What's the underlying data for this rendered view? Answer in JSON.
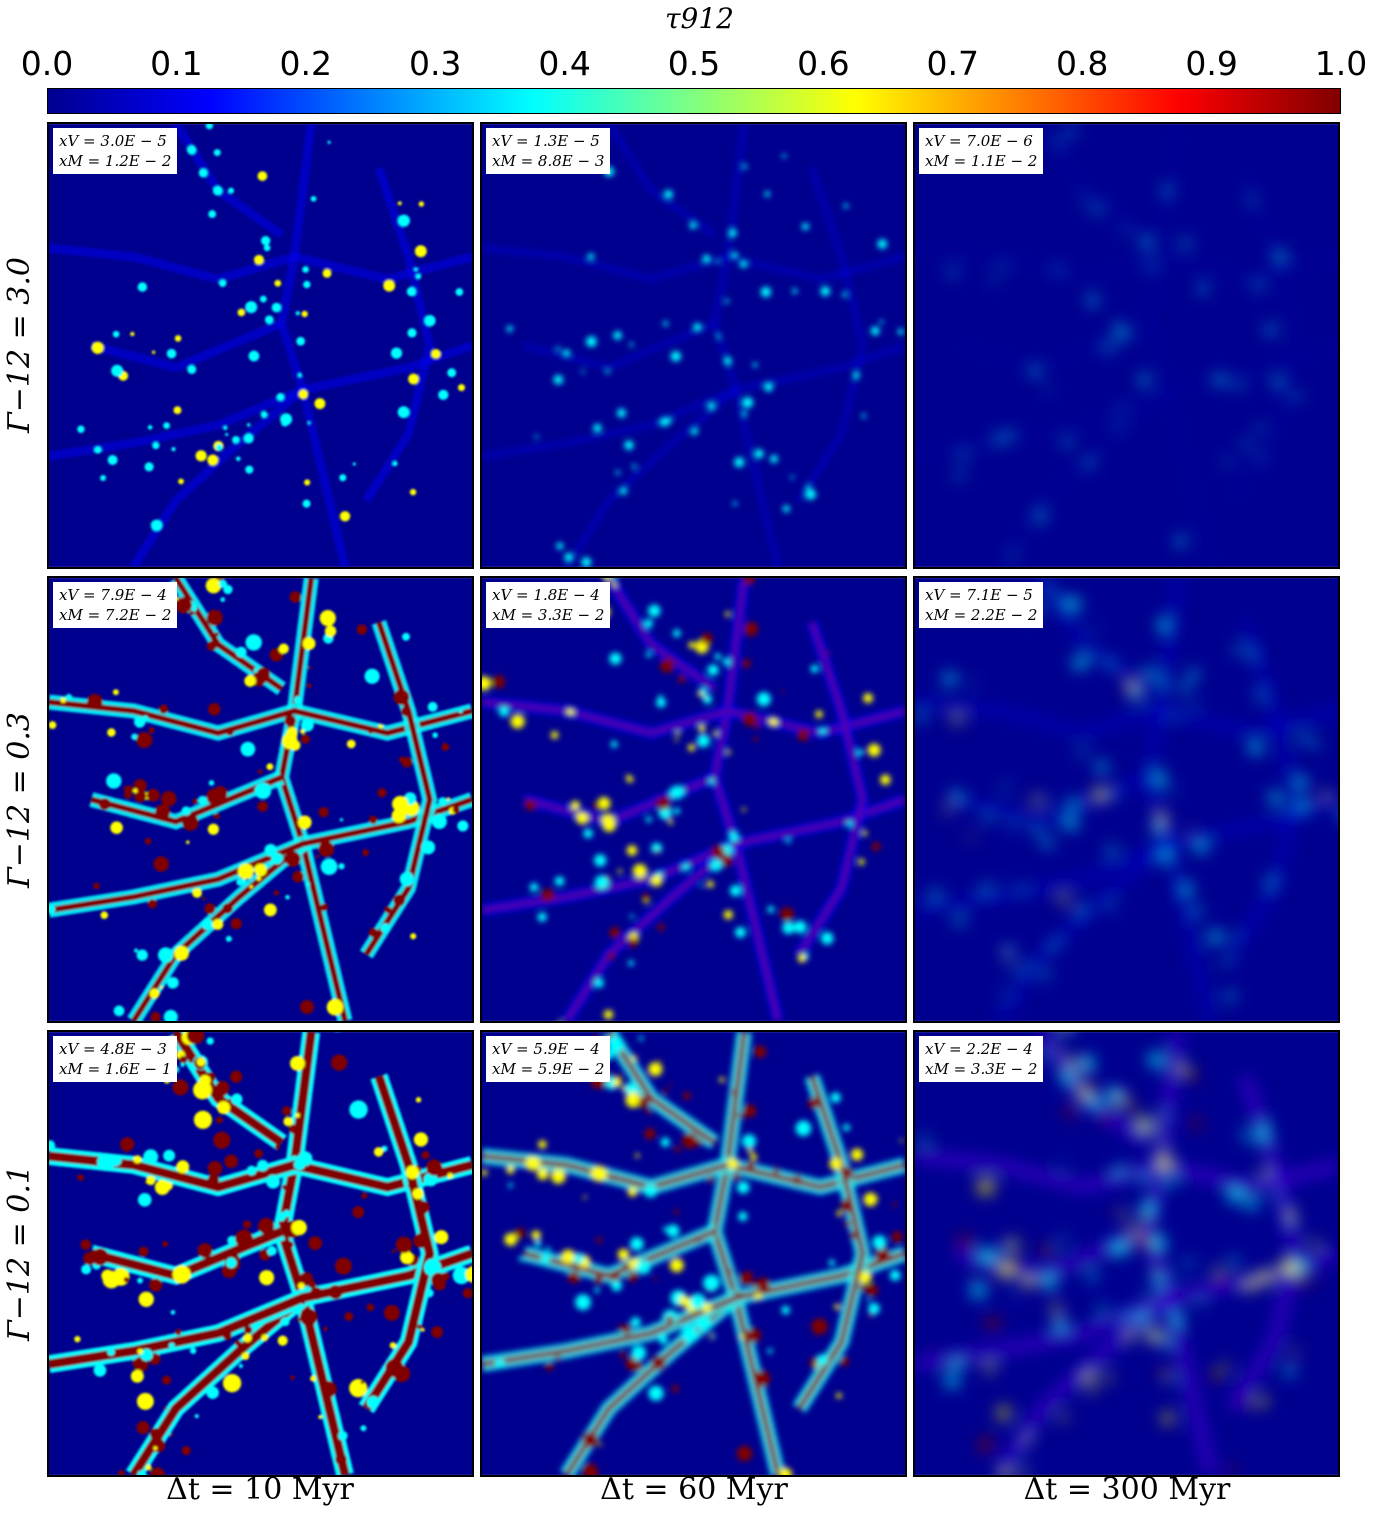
{
  "chart_data": {
    "type": "heatmap",
    "colorbar": {
      "label": "τ912",
      "colormap": "jet",
      "range": [
        0.0,
        1.0
      ],
      "ticks": [
        "0.0",
        "0.1",
        "0.2",
        "0.3",
        "0.4",
        "0.5",
        "0.6",
        "0.7",
        "0.8",
        "0.9",
        "1.0"
      ]
    },
    "row_labels": [
      "Γ−12 = 3.0",
      "Γ−12 = 0.3",
      "Γ−12 = 0.1"
    ],
    "column_labels": [
      "Δt = 10 Myr",
      "Δt = 60 Myr",
      "Δt = 300 Myr"
    ],
    "panels": [
      {
        "row": 0,
        "col": 0,
        "xV": "xV = 3.0E − 5",
        "xM": "xM = 1.2E − 2"
      },
      {
        "row": 0,
        "col": 1,
        "xV": "xV = 1.3E − 5",
        "xM": "xM = 8.8E − 3"
      },
      {
        "row": 0,
        "col": 2,
        "xV": "xV = 7.0E − 6",
        "xM": "xM = 1.1E − 2"
      },
      {
        "row": 1,
        "col": 0,
        "xV": "xV = 7.9E − 4",
        "xM": "xM = 7.2E − 2"
      },
      {
        "row": 1,
        "col": 1,
        "xV": "xV = 1.8E − 4",
        "xM": "xM = 3.3E − 2"
      },
      {
        "row": 1,
        "col": 2,
        "xV": "xV = 7.1E − 5",
        "xM": "xM = 2.2E − 2"
      },
      {
        "row": 2,
        "col": 0,
        "xV": "xV = 4.8E − 3",
        "xM": "xM = 1.6E − 1"
      },
      {
        "row": 2,
        "col": 1,
        "xV": "xV = 5.9E − 4",
        "xM": "xM = 5.9E − 2"
      },
      {
        "row": 2,
        "col": 2,
        "xV": "xV = 2.2E − 4",
        "xM": "xM = 3.3E − 2"
      }
    ]
  },
  "colors": {
    "background": "#00008f",
    "low": "#0000ff",
    "mid": "#00ffff",
    "high": "#ffff00",
    "saturated": "#800000"
  }
}
